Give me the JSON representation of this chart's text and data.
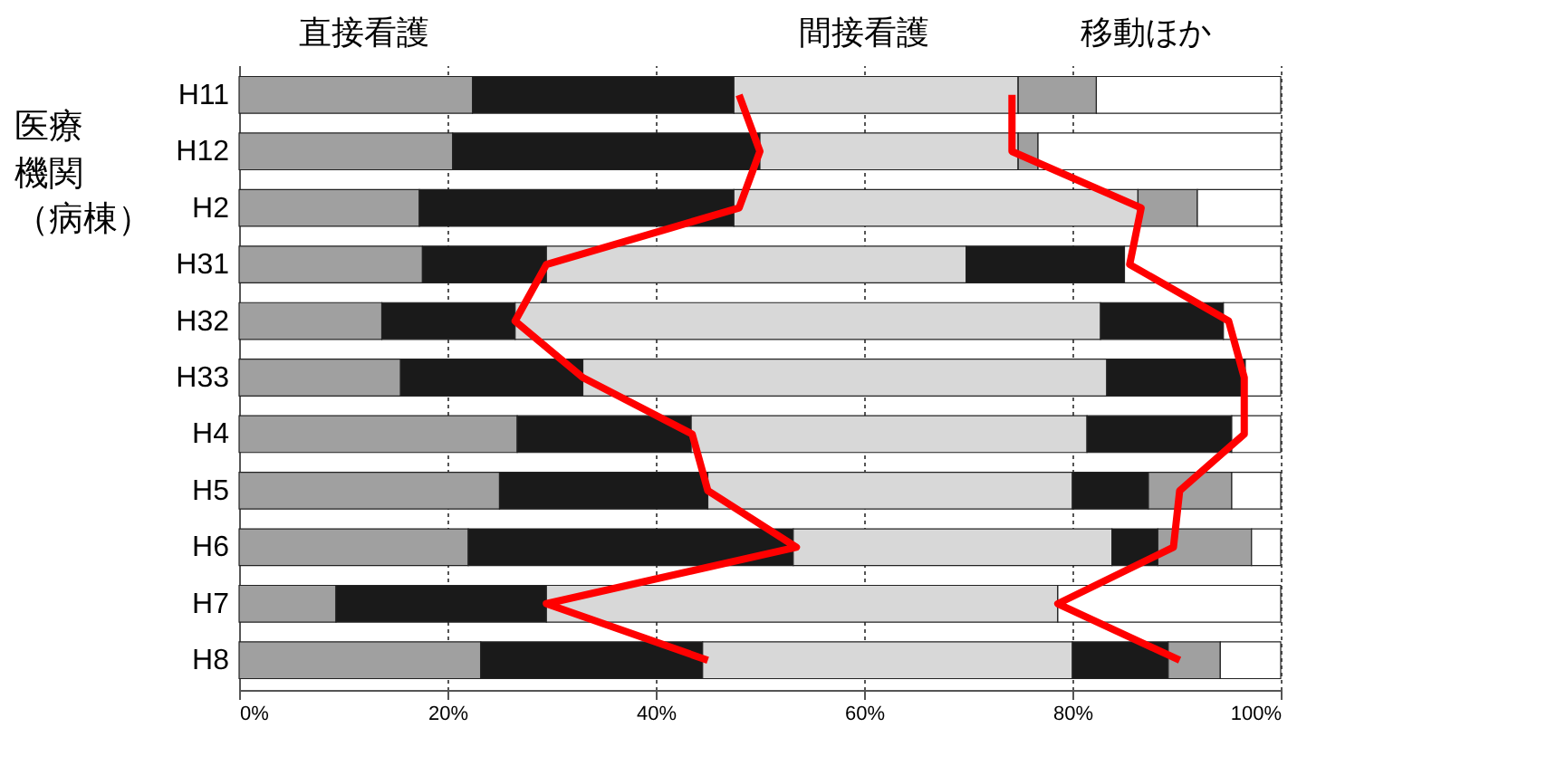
{
  "chart_data": {
    "type": "bar",
    "orientation": "horizontal",
    "stacked": true,
    "ylabel": "医療機関（病棟）",
    "annotations": [
      "直接看護",
      "間接看護",
      "移動ほか"
    ],
    "categories": [
      "H11",
      "H12",
      "H2",
      "H31",
      "H32",
      "H33",
      "H4",
      "H5",
      "H6",
      "H7",
      "H8"
    ],
    "series": [
      {
        "color": "#a0a0a0",
        "values": [
          22.4,
          20.5,
          17.3,
          17.6,
          13.7,
          15.5,
          26.7,
          25,
          22,
          9.3,
          23.2
        ]
      },
      {
        "color": "#1a1a1a",
        "values": [
          25.1,
          29.5,
          30.2,
          11.9,
          12.8,
          17.5,
          16.7,
          20,
          31.2,
          20.2,
          21.3
        ]
      },
      {
        "color": "#d8d8d8",
        "values": [
          27.3,
          24.8,
          38.8,
          40.3,
          56.2,
          50.3,
          38,
          35,
          30.6,
          49.1,
          35.5
        ]
      },
      {
        "color": "#1a1a1a",
        "values": [
          0,
          0,
          0,
          15.2,
          11.8,
          13.3,
          13.9,
          7.3,
          4.4,
          0,
          9.2
        ]
      },
      {
        "color": "#a0a0a0",
        "values": [
          7.5,
          1.9,
          5.7,
          0,
          0,
          0,
          0,
          8,
          9,
          0,
          5
        ]
      },
      {
        "color": "#ffffff",
        "values": [
          17.7,
          23.3,
          8,
          15,
          5.5,
          3.4,
          4.7,
          4.7,
          2.8,
          21.4,
          5.8
        ]
      },
      {
        "type": "line",
        "color": "#ff0000",
        "values": [
          48,
          50,
          48,
          29.5,
          26.5,
          33,
          43.5,
          45,
          53.5,
          29.5,
          45
        ]
      },
      {
        "type": "line",
        "color": "#ff0000",
        "values": [
          74.2,
          74.2,
          86.6,
          85.5,
          95,
          96.5,
          96.5,
          90.3,
          89.7,
          78.6,
          90.3
        ]
      }
    ],
    "xlim": [
      0,
      100
    ],
    "xticks": [
      {
        "value": 0,
        "label": "0%"
      },
      {
        "value": 20,
        "label": "20%"
      },
      {
        "value": 40,
        "label": "40%"
      },
      {
        "value": 60,
        "label": "60%"
      },
      {
        "value": 80,
        "label": "80%"
      },
      {
        "value": 100,
        "label": "100%"
      }
    ],
    "grid": "x",
    "marker": "none",
    "line_style": "solid"
  }
}
